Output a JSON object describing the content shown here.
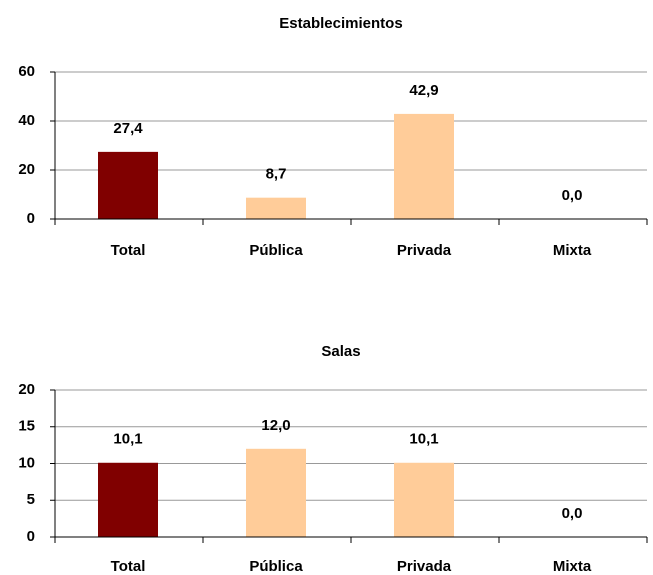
{
  "chart_data": [
    {
      "type": "bar",
      "title": "Establecimientos",
      "categories": [
        "Total",
        "Pública",
        "Privada",
        "Mixta"
      ],
      "values": [
        27.4,
        8.7,
        42.9,
        0.0
      ],
      "value_labels": [
        "27,4",
        "8,7",
        "42,9",
        "0,0"
      ],
      "colors": [
        "#800000",
        "#ffcc99",
        "#ffcc99",
        "#ffcc99"
      ],
      "ylim": [
        0,
        60
      ],
      "yticks": [
        0,
        20,
        40,
        60
      ],
      "grid": true
    },
    {
      "type": "bar",
      "title": "Salas",
      "categories": [
        "Total",
        "Pública",
        "Privada",
        "Mixta"
      ],
      "values": [
        10.1,
        12.0,
        10.1,
        0.0
      ],
      "value_labels": [
        "10,1",
        "12,0",
        "10,1",
        "0,0"
      ],
      "colors": [
        "#800000",
        "#ffcc99",
        "#ffcc99",
        "#ffcc99"
      ],
      "ylim": [
        0,
        20
      ],
      "yticks": [
        0,
        5,
        10,
        15,
        20
      ],
      "grid": true
    }
  ]
}
